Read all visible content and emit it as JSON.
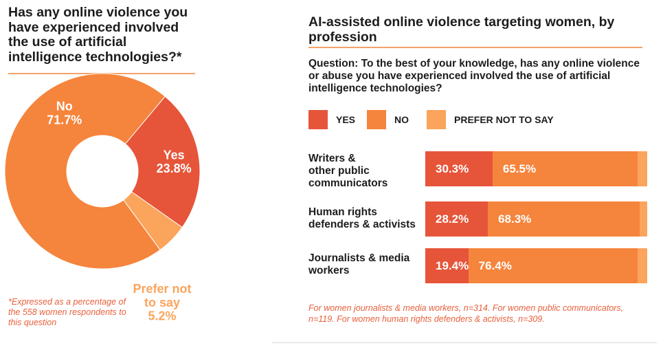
{
  "left": {
    "title": "Has any online violence you have experienced involved the use of artificial intelligence technologies?*",
    "footnote": "*Expressed as a percentage of the 558 women respondents to this question"
  },
  "right": {
    "title": "AI-assisted online violence targeting women, by profession",
    "question": "Question: To the best of your knowledge, has any online violence or abuse you have experienced involved the use of artificial intelligence technologies?",
    "footnote": "For women journalists & media workers, n=314. For women public communicators, n=119. For women human rights defenders & activists, n=309."
  },
  "colors": {
    "yes": "#e6553a",
    "no": "#f5843c",
    "prefer": "#fba45c",
    "footnote": "#e8603c"
  },
  "chart_data": [
    {
      "type": "pie",
      "title": "Has any online violence you have experienced involved the use of artificial intelligence technologies?*",
      "donut": true,
      "slices": [
        {
          "label": "Yes",
          "value": 23.8,
          "display": "23.8%"
        },
        {
          "label": "Prefer not to say",
          "value": 5.2,
          "display": "5.2%"
        },
        {
          "label": "No",
          "value": 71.7,
          "display": "71.7%"
        }
      ]
    },
    {
      "type": "bar",
      "orientation": "horizontal",
      "stacked": true,
      "title": "AI-assisted online violence targeting women, by profession",
      "legend": [
        "YES",
        "NO",
        "PREFER NOT TO SAY"
      ],
      "legend_position": "top",
      "categories": [
        "Writers & other public communicators",
        "Human rights defenders & activists",
        "Journalists & media workers"
      ],
      "category_lines": [
        [
          "Writers &",
          "other public",
          "communicators"
        ],
        [
          "Human rights",
          "defenders & activists"
        ],
        [
          "Journalists & media",
          "workers"
        ]
      ],
      "series": [
        {
          "name": "YES",
          "values": [
            30.3,
            28.2,
            19.4
          ],
          "labels": [
            "30.3%",
            "28.2%",
            "19.4%"
          ]
        },
        {
          "name": "NO",
          "values": [
            65.5,
            68.3,
            76.4
          ],
          "labels": [
            "65.5%",
            "68.3%",
            "76.4%"
          ]
        },
        {
          "name": "PREFER NOT TO SAY",
          "values": [
            4.2,
            3.5,
            4.2
          ]
        }
      ],
      "xlim": [
        0,
        100
      ]
    }
  ]
}
